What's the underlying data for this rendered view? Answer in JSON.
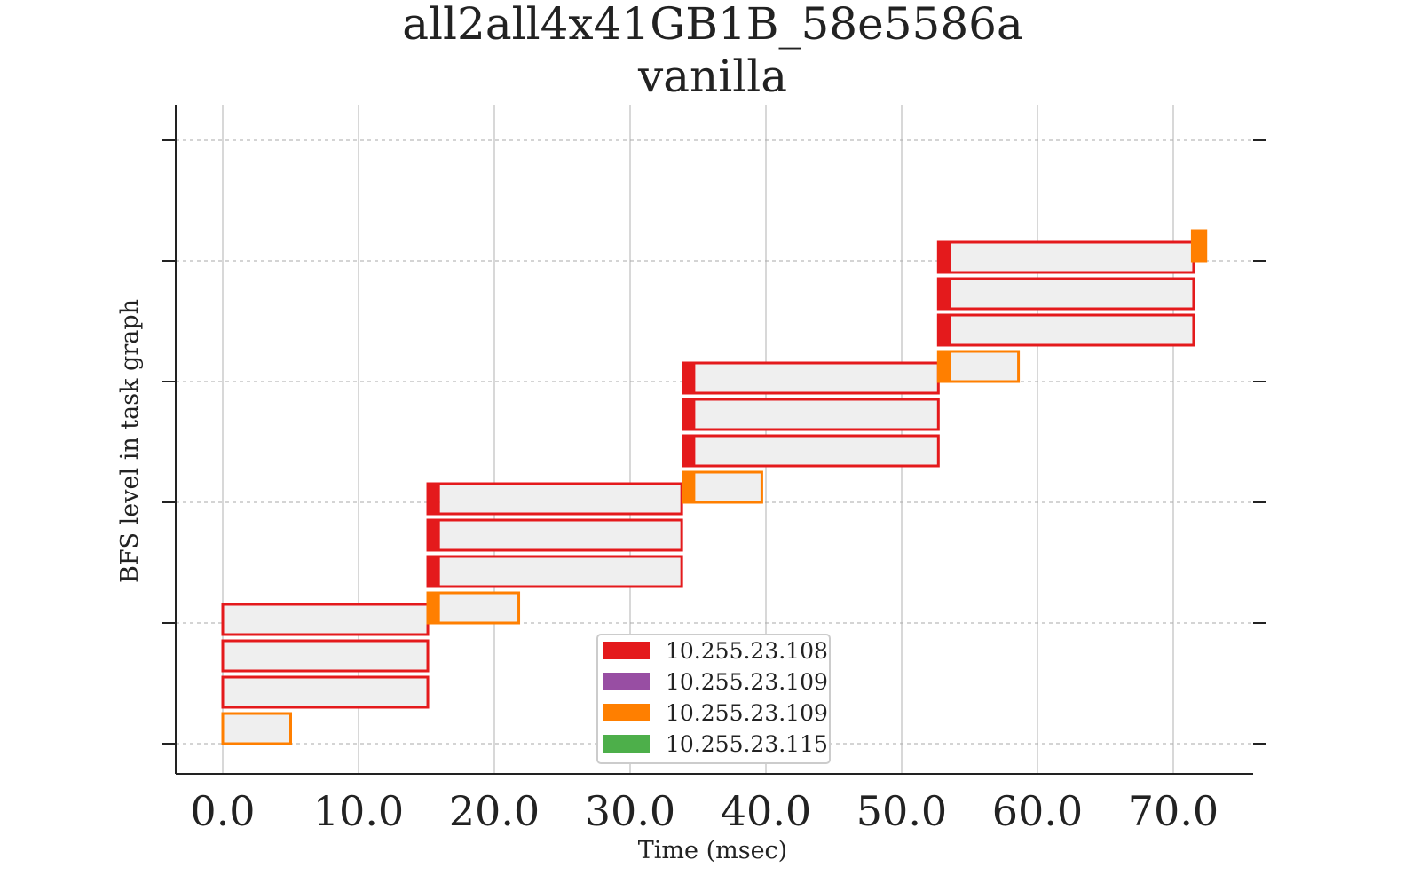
{
  "chart_data": {
    "type": "gantt",
    "title": "all2all4x41GB1B_58e5586a",
    "subtitle": "vanilla",
    "xlabel": "Time (msec)",
    "ylabel": "BFS level in task graph",
    "xlim": [
      -3.5,
      75.9
    ],
    "ylim": [
      -0.25,
      5.25
    ],
    "x_ticks": [
      0,
      10,
      20,
      30,
      40,
      50,
      60,
      70
    ],
    "x_tick_labels": [
      "0.0",
      "10.0",
      "20.0",
      "30.0",
      "40.0",
      "50.0",
      "60.0",
      "70.0"
    ],
    "y_ticks": [
      0,
      1,
      2,
      3,
      4,
      5
    ],
    "grid": true,
    "legend_position": "lower-center",
    "legend": [
      {
        "label": "10.255.23.108",
        "color": "#e41a1c"
      },
      {
        "label": "10.255.23.109",
        "color": "#984ea3"
      },
      {
        "label": "10.255.23.109",
        "color": "#ff7f00"
      },
      {
        "label": "10.255.23.115",
        "color": "#4daf4a"
      }
    ],
    "tasks": [
      {
        "host": 2,
        "level": 0,
        "row": 0,
        "start": 0.0,
        "end": 5.0,
        "startup_end": 0.0
      },
      {
        "host": 0,
        "level": 0,
        "row": 1,
        "start": 0.0,
        "end": 15.1,
        "startup_end": 0.0
      },
      {
        "host": 0,
        "level": 0,
        "row": 2,
        "start": 0.0,
        "end": 15.1,
        "startup_end": 0.0
      },
      {
        "host": 0,
        "level": 0,
        "row": 3,
        "start": 0.0,
        "end": 15.1,
        "startup_end": 0.0
      },
      {
        "host": 2,
        "level": 1,
        "row": 0,
        "start": 15.1,
        "end": 21.8,
        "startup_end": 16.0
      },
      {
        "host": 0,
        "level": 1,
        "row": 1,
        "start": 15.1,
        "end": 33.8,
        "startup_end": 16.0
      },
      {
        "host": 0,
        "level": 1,
        "row": 2,
        "start": 15.1,
        "end": 33.8,
        "startup_end": 16.0
      },
      {
        "host": 0,
        "level": 1,
        "row": 3,
        "start": 15.1,
        "end": 33.8,
        "startup_end": 16.0
      },
      {
        "host": 2,
        "level": 2,
        "row": 0,
        "start": 33.9,
        "end": 39.7,
        "startup_end": 34.8
      },
      {
        "host": 0,
        "level": 2,
        "row": 1,
        "start": 33.9,
        "end": 52.7,
        "startup_end": 34.8
      },
      {
        "host": 0,
        "level": 2,
        "row": 2,
        "start": 33.9,
        "end": 52.7,
        "startup_end": 34.8
      },
      {
        "host": 0,
        "level": 2,
        "row": 3,
        "start": 33.9,
        "end": 52.7,
        "startup_end": 34.8
      },
      {
        "host": 2,
        "level": 3,
        "row": 0,
        "start": 52.7,
        "end": 58.6,
        "startup_end": 53.6
      },
      {
        "host": 0,
        "level": 3,
        "row": 1,
        "start": 52.7,
        "end": 71.5,
        "startup_end": 53.6
      },
      {
        "host": 0,
        "level": 3,
        "row": 2,
        "start": 52.7,
        "end": 71.5,
        "startup_end": 53.6
      },
      {
        "host": 0,
        "level": 3,
        "row": 3,
        "start": 52.7,
        "end": 71.5,
        "startup_end": 53.6
      },
      {
        "host": 2,
        "level": 4,
        "row": 0,
        "start": 71.4,
        "end": 72.4,
        "startup_end": 72.4
      }
    ]
  }
}
